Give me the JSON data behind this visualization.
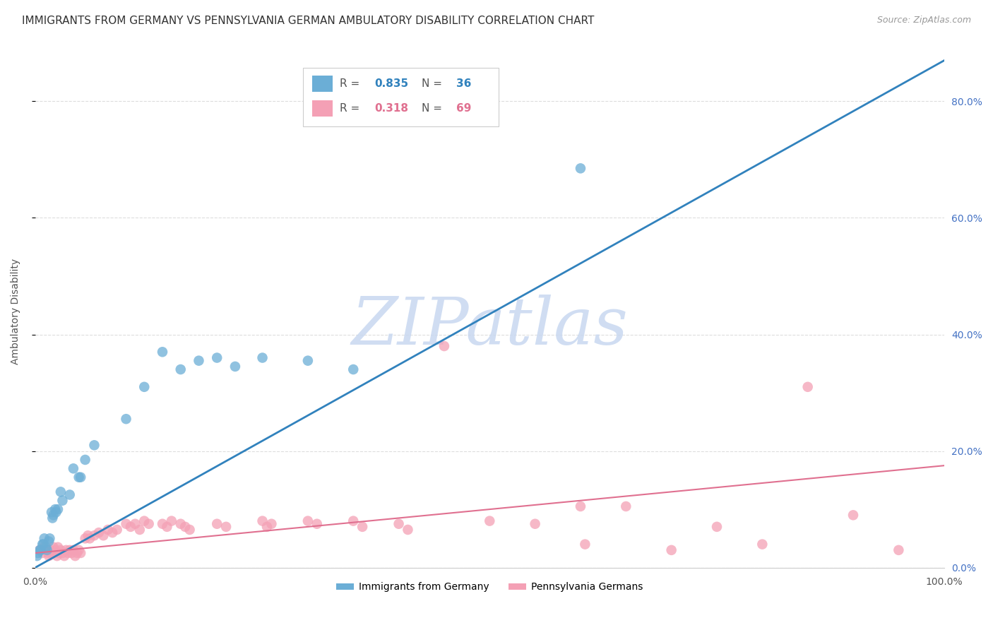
{
  "title": "IMMIGRANTS FROM GERMANY VS PENNSYLVANIA GERMAN AMBULATORY DISABILITY CORRELATION CHART",
  "source": "Source: ZipAtlas.com",
  "ylabel": "Ambulatory Disability",
  "legend1_r": "0.835",
  "legend1_n": "36",
  "legend2_r": "0.318",
  "legend2_n": "69",
  "blue_color": "#6baed6",
  "pink_color": "#f4a0b5",
  "blue_line_color": "#3182bd",
  "pink_line_color": "#e07090",
  "right_tick_color": "#4472c4",
  "blue_scatter": [
    [
      0.002,
      0.02
    ],
    [
      0.003,
      0.025
    ],
    [
      0.005,
      0.03
    ],
    [
      0.006,
      0.03
    ],
    [
      0.008,
      0.04
    ],
    [
      0.009,
      0.04
    ],
    [
      0.01,
      0.05
    ],
    [
      0.012,
      0.035
    ],
    [
      0.013,
      0.03
    ],
    [
      0.015,
      0.045
    ],
    [
      0.016,
      0.05
    ],
    [
      0.018,
      0.095
    ],
    [
      0.019,
      0.085
    ],
    [
      0.02,
      0.09
    ],
    [
      0.022,
      0.1
    ],
    [
      0.023,
      0.095
    ],
    [
      0.025,
      0.1
    ],
    [
      0.028,
      0.13
    ],
    [
      0.03,
      0.115
    ],
    [
      0.038,
      0.125
    ],
    [
      0.042,
      0.17
    ],
    [
      0.048,
      0.155
    ],
    [
      0.05,
      0.155
    ],
    [
      0.055,
      0.185
    ],
    [
      0.065,
      0.21
    ],
    [
      0.1,
      0.255
    ],
    [
      0.12,
      0.31
    ],
    [
      0.14,
      0.37
    ],
    [
      0.16,
      0.34
    ],
    [
      0.18,
      0.355
    ],
    [
      0.2,
      0.36
    ],
    [
      0.22,
      0.345
    ],
    [
      0.25,
      0.36
    ],
    [
      0.3,
      0.355
    ],
    [
      0.35,
      0.34
    ],
    [
      0.6,
      0.685
    ]
  ],
  "pink_scatter": [
    [
      0.005,
      0.03
    ],
    [
      0.008,
      0.025
    ],
    [
      0.01,
      0.035
    ],
    [
      0.012,
      0.03
    ],
    [
      0.014,
      0.025
    ],
    [
      0.015,
      0.02
    ],
    [
      0.016,
      0.03
    ],
    [
      0.018,
      0.025
    ],
    [
      0.02,
      0.035
    ],
    [
      0.022,
      0.03
    ],
    [
      0.024,
      0.02
    ],
    [
      0.025,
      0.035
    ],
    [
      0.026,
      0.025
    ],
    [
      0.028,
      0.03
    ],
    [
      0.03,
      0.025
    ],
    [
      0.032,
      0.02
    ],
    [
      0.034,
      0.03
    ],
    [
      0.036,
      0.025
    ],
    [
      0.038,
      0.03
    ],
    [
      0.04,
      0.025
    ],
    [
      0.042,
      0.03
    ],
    [
      0.044,
      0.02
    ],
    [
      0.046,
      0.025
    ],
    [
      0.048,
      0.03
    ],
    [
      0.05,
      0.025
    ],
    [
      0.055,
      0.05
    ],
    [
      0.058,
      0.055
    ],
    [
      0.06,
      0.05
    ],
    [
      0.065,
      0.055
    ],
    [
      0.07,
      0.06
    ],
    [
      0.075,
      0.055
    ],
    [
      0.08,
      0.065
    ],
    [
      0.085,
      0.06
    ],
    [
      0.09,
      0.065
    ],
    [
      0.1,
      0.075
    ],
    [
      0.105,
      0.07
    ],
    [
      0.11,
      0.075
    ],
    [
      0.115,
      0.065
    ],
    [
      0.12,
      0.08
    ],
    [
      0.125,
      0.075
    ],
    [
      0.14,
      0.075
    ],
    [
      0.145,
      0.07
    ],
    [
      0.15,
      0.08
    ],
    [
      0.16,
      0.075
    ],
    [
      0.165,
      0.07
    ],
    [
      0.17,
      0.065
    ],
    [
      0.2,
      0.075
    ],
    [
      0.21,
      0.07
    ],
    [
      0.25,
      0.08
    ],
    [
      0.255,
      0.07
    ],
    [
      0.26,
      0.075
    ],
    [
      0.3,
      0.08
    ],
    [
      0.31,
      0.075
    ],
    [
      0.35,
      0.08
    ],
    [
      0.36,
      0.07
    ],
    [
      0.4,
      0.075
    ],
    [
      0.41,
      0.065
    ],
    [
      0.45,
      0.38
    ],
    [
      0.5,
      0.08
    ],
    [
      0.55,
      0.075
    ],
    [
      0.6,
      0.105
    ],
    [
      0.605,
      0.04
    ],
    [
      0.65,
      0.105
    ],
    [
      0.7,
      0.03
    ],
    [
      0.75,
      0.07
    ],
    [
      0.8,
      0.04
    ],
    [
      0.85,
      0.31
    ],
    [
      0.9,
      0.09
    ],
    [
      0.95,
      0.03
    ]
  ],
  "blue_line_x": [
    0.0,
    1.0
  ],
  "blue_line_y": [
    0.0,
    0.87
  ],
  "pink_line_x": [
    0.0,
    1.0
  ],
  "pink_line_y": [
    0.025,
    0.175
  ],
  "xlim": [
    0.0,
    1.0
  ],
  "ylim": [
    0.0,
    0.88
  ],
  "yticks": [
    0.0,
    0.2,
    0.4,
    0.6,
    0.8
  ],
  "ytick_labels": [
    "0.0%",
    "20.0%",
    "40.0%",
    "60.0%",
    "80.0%"
  ],
  "xticks": [
    0.0,
    0.25,
    0.5,
    0.75,
    1.0
  ],
  "xtick_labels_left": "0.0%",
  "xtick_labels_right": "100.0%",
  "watermark_text": "ZIPatlas",
  "watermark_color": "#c8d8f0",
  "background_color": "#ffffff",
  "grid_color": "#dddddd",
  "title_fontsize": 11,
  "axis_label_fontsize": 10,
  "tick_fontsize": 10,
  "legend_bottom_labels": [
    "Immigrants from Germany",
    "Pennsylvania Germans"
  ]
}
